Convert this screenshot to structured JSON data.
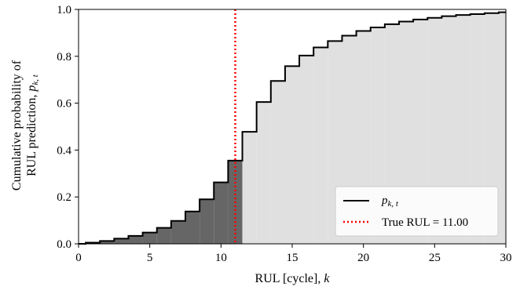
{
  "chart_data": {
    "type": "step",
    "xlabel": "RUL [cycle], ",
    "xlabel_var": "k",
    "ylabel_line1": "Cumulative probability of",
    "ylabel_line2": "RUL prediction, ",
    "ylabel_var": "p",
    "ylabel_sub": "k, t",
    "xlim": [
      0,
      30
    ],
    "ylim": [
      0,
      1
    ],
    "xticks": [
      "0",
      "5",
      "10",
      "15",
      "20",
      "25",
      "30"
    ],
    "yticks": [
      "0.0",
      "0.2",
      "0.4",
      "0.6",
      "0.8",
      "1.0"
    ],
    "x": [
      0,
      1,
      2,
      3,
      4,
      5,
      6,
      7,
      8,
      9,
      10,
      11,
      12,
      13,
      14,
      15,
      16,
      17,
      18,
      19,
      20,
      21,
      22,
      23,
      24,
      25,
      26,
      27,
      28,
      29
    ],
    "y": [
      0.005,
      0.012,
      0.022,
      0.034,
      0.048,
      0.068,
      0.098,
      0.138,
      0.19,
      0.262,
      0.355,
      0.478,
      0.605,
      0.695,
      0.758,
      0.803,
      0.838,
      0.865,
      0.888,
      0.908,
      0.923,
      0.937,
      0.948,
      0.957,
      0.964,
      0.971,
      0.976,
      0.98,
      0.984,
      0.988
    ],
    "true_rul": 11.0,
    "legend": {
      "placement": "lower-right",
      "series_var": "p",
      "series_sub": "k, t",
      "true_label": "True RUL = 11.00"
    },
    "colors": {
      "step_line": "#000000",
      "true_line": "#ff0000",
      "fill_before": "#666666",
      "fill_after": "#e0e0e0"
    }
  }
}
